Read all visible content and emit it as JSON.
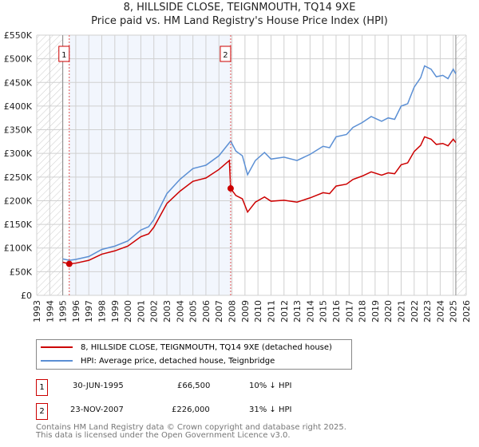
{
  "chart_data": {
    "type": "line",
    "title": "8, HILLSIDE CLOSE, TEIGNMOUTH, TQ14 9XE",
    "subtitle": "Price paid vs. HM Land Registry's House Price Index (HPI)",
    "xlim": [
      1993,
      2026
    ],
    "ylim": [
      0,
      550000
    ],
    "x_ticks": [
      "1993",
      "1994",
      "1995",
      "1996",
      "1997",
      "1998",
      "1999",
      "2000",
      "2001",
      "2002",
      "2003",
      "2004",
      "2005",
      "2006",
      "2007",
      "2008",
      "2009",
      "2010",
      "2011",
      "2012",
      "2013",
      "2014",
      "2015",
      "2016",
      "2017",
      "2018",
      "2019",
      "2020",
      "2021",
      "2022",
      "2023",
      "2024",
      "2025",
      "2026"
    ],
    "y_ticks": [
      {
        "v": 0,
        "label": "£0"
      },
      {
        "v": 50000,
        "label": "£50K"
      },
      {
        "v": 100000,
        "label": "£100K"
      },
      {
        "v": 150000,
        "label": "£150K"
      },
      {
        "v": 200000,
        "label": "£200K"
      },
      {
        "v": 250000,
        "label": "£250K"
      },
      {
        "v": 300000,
        "label": "£300K"
      },
      {
        "v": 350000,
        "label": "£350K"
      },
      {
        "v": 400000,
        "label": "£400K"
      },
      {
        "v": 450000,
        "label": "£450K"
      },
      {
        "v": 500000,
        "label": "£500K"
      },
      {
        "v": 550000,
        "label": "£550K"
      }
    ],
    "grid": true,
    "hatched_ranges": [
      [
        1993,
        1995
      ],
      [
        2025.2,
        2026
      ]
    ],
    "shaded_range": [
      1995.5,
      2007.9
    ],
    "series": [
      {
        "name": "8, HILLSIDE CLOSE, TEIGNMOUTH, TQ14 9XE (detached house)",
        "color": "#cc0000",
        "x": [
          1995,
          1995.5,
          1996,
          1997,
          1998,
          1999,
          2000,
          2001,
          2001.6,
          2002,
          2003,
          2004,
          2005,
          2006,
          2007,
          2007.8,
          2007.9,
          2008.3,
          2008.8,
          2009.2,
          2009.8,
          2010.5,
          2011,
          2012,
          2013,
          2014,
          2015,
          2015.5,
          2016,
          2016.8,
          2017.3,
          2018,
          2018.7,
          2019.5,
          2020,
          2020.5,
          2021,
          2021.5,
          2022,
          2022.5,
          2022.8,
          2023.3,
          2023.7,
          2024.2,
          2024.6,
          2025,
          2025.2
        ],
        "y": [
          70000,
          66500,
          68000,
          74000,
          87000,
          94000,
          104000,
          124000,
          130000,
          144000,
          194000,
          220000,
          241000,
          248000,
          266000,
          285000,
          226000,
          211000,
          204000,
          176000,
          197000,
          208000,
          199000,
          201000,
          197000,
          206000,
          217000,
          215000,
          231000,
          235000,
          245000,
          252000,
          261000,
          254000,
          259000,
          257000,
          276000,
          280000,
          304000,
          317000,
          335000,
          330000,
          319000,
          321000,
          316000,
          330000,
          323000
        ]
      },
      {
        "name": "HPI: Average price, detached house, Teignbridge",
        "color": "#5b8fd4",
        "x": [
          1995,
          1995.5,
          1996,
          1997,
          1998,
          1999,
          2000,
          2001,
          2001.6,
          2002,
          2003,
          2004,
          2005,
          2006,
          2007,
          2007.9,
          2008.3,
          2008.8,
          2009.2,
          2009.8,
          2010.5,
          2011,
          2012,
          2013,
          2014,
          2015,
          2015.5,
          2016,
          2016.8,
          2017.3,
          2018,
          2018.7,
          2019.5,
          2020,
          2020.5,
          2021,
          2021.5,
          2022,
          2022.5,
          2022.8,
          2023.3,
          2023.7,
          2024.2,
          2024.6,
          2025,
          2025.2
        ],
        "y": [
          77000,
          74000,
          76000,
          82000,
          97000,
          104000,
          115000,
          138000,
          145000,
          160000,
          215000,
          245000,
          268000,
          275000,
          295000,
          326000,
          305000,
          295000,
          255000,
          285000,
          302000,
          288000,
          292000,
          285000,
          298000,
          315000,
          312000,
          335000,
          340000,
          355000,
          365000,
          378000,
          368000,
          375000,
          372000,
          400000,
          405000,
          440000,
          460000,
          485000,
          478000,
          462000,
          465000,
          458000,
          478000,
          468000
        ]
      }
    ],
    "sales": [
      {
        "label": "1",
        "x": 1995.5,
        "y": 66500,
        "date": "30-JUN-1995",
        "price": "£66,500",
        "hpi": "10% ↓ HPI"
      },
      {
        "label": "2",
        "x": 2007.9,
        "y": 226000,
        "date": "23-NOV-2007",
        "price": "£226,000",
        "hpi": "31% ↓ HPI"
      }
    ]
  },
  "footer": {
    "line1": "Contains HM Land Registry data © Crown copyright and database right 2025.",
    "line2": "This data is licensed under the Open Government Licence v3.0."
  }
}
